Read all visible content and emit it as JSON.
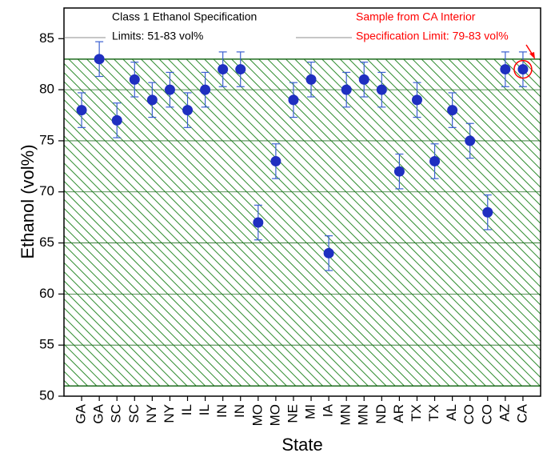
{
  "chart_data": {
    "type": "scatter",
    "y_label": "Ethanol (vol%)",
    "x_label": "State",
    "categories": [
      "GA",
      "GA",
      "SC",
      "SC",
      "NY",
      "NY",
      "IL",
      "IL",
      "IN",
      "IN",
      "MO",
      "MO",
      "NE",
      "MI",
      "IA",
      "MN",
      "MN",
      "ND",
      "AR",
      "TX",
      "TX",
      "AL",
      "CO",
      "CO",
      "AZ",
      "CA"
    ],
    "values": [
      78,
      83,
      77,
      81,
      79,
      80,
      78,
      80,
      82,
      82,
      67,
      73,
      79,
      81,
      64,
      80,
      81,
      80,
      72,
      79,
      73,
      78,
      75,
      68,
      82,
      82
    ],
    "errors": [
      1.7,
      1.7,
      1.7,
      1.7,
      1.7,
      1.7,
      1.7,
      1.7,
      1.7,
      1.7,
      1.7,
      1.7,
      1.7,
      1.7,
      1.7,
      1.7,
      1.7,
      1.7,
      1.7,
      1.7,
      1.7,
      1.7,
      1.7,
      1.7,
      1.7,
      1.7
    ],
    "color": "#1f2fc0",
    "error_color": "#3a5fd0",
    "spec_band": [
      51,
      83
    ],
    "band_color": "#2e8b2e",
    "ylim": [
      50,
      88
    ],
    "yticks": [
      50,
      55,
      60,
      65,
      70,
      75,
      80,
      85
    ],
    "grid": true,
    "annotations": [
      {
        "lines": [
          "Class 1 Ethanol Specification",
          "Limits: 51-83 vol%"
        ],
        "color": "#000000"
      },
      {
        "lines": [
          "Sample from CA Interior",
          "Specification Limit: 79-83 vol%"
        ],
        "color": "#ff0000"
      }
    ]
  }
}
